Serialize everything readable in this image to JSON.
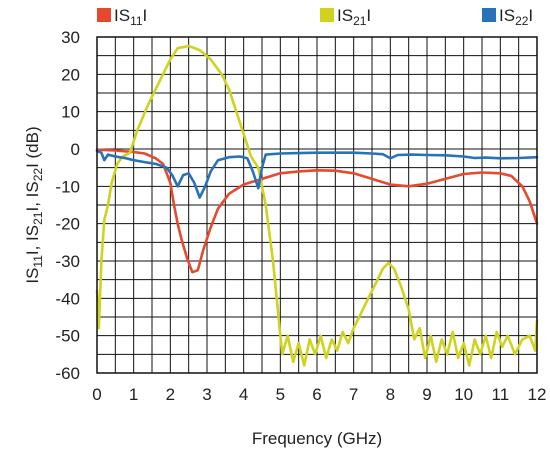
{
  "chart_data": {
    "type": "line",
    "xlabel": "Frequency (GHz)",
    "ylabel": "|S11|, |S21|, |S22| (dB)",
    "ylabel_parts": [
      {
        "t": "IS",
        "sub": false
      },
      {
        "t": "11",
        "sub": true
      },
      {
        "t": "I, IS",
        "sub": false
      },
      {
        "t": "21",
        "sub": true
      },
      {
        "t": "I, IS",
        "sub": false
      },
      {
        "t": "22",
        "sub": true
      },
      {
        "t": "I (dB)",
        "sub": false
      }
    ],
    "xlim": [
      0,
      12
    ],
    "ylim": [
      -60,
      30
    ],
    "x_ticks": [
      0,
      1,
      2,
      3,
      4,
      5,
      6,
      7,
      8,
      9,
      10,
      11,
      12
    ],
    "y_ticks": [
      30,
      20,
      10,
      0,
      -10,
      -20,
      -30,
      -40,
      -50,
      -60
    ],
    "x_minor_step": 0.5,
    "y_minor_step": 5,
    "grid": true,
    "legend_position": "top",
    "series": [
      {
        "name": "|S11|",
        "label_main": "IS",
        "label_sub": "11",
        "label_end": "I",
        "color": "#e64a2e",
        "points": [
          [
            0,
            -0.2
          ],
          [
            0.5,
            -0.4
          ],
          [
            1,
            -0.8
          ],
          [
            1.3,
            -1.2
          ],
          [
            1.6,
            -2.5
          ],
          [
            1.8,
            -4
          ],
          [
            2,
            -9
          ],
          [
            2.1,
            -15
          ],
          [
            2.2,
            -20
          ],
          [
            2.3,
            -24
          ],
          [
            2.45,
            -29
          ],
          [
            2.6,
            -33
          ],
          [
            2.75,
            -32.5
          ],
          [
            2.9,
            -27
          ],
          [
            3.1,
            -21
          ],
          [
            3.3,
            -16
          ],
          [
            3.6,
            -12
          ],
          [
            4,
            -9.5
          ],
          [
            4.5,
            -8
          ],
          [
            5,
            -6.5
          ],
          [
            5.5,
            -6
          ],
          [
            6,
            -5.7
          ],
          [
            6.5,
            -5.8
          ],
          [
            7,
            -6.5
          ],
          [
            7.5,
            -8
          ],
          [
            8,
            -9.5
          ],
          [
            8.5,
            -10
          ],
          [
            9,
            -9.3
          ],
          [
            9.5,
            -8
          ],
          [
            10,
            -6.7
          ],
          [
            10.5,
            -6.3
          ],
          [
            11,
            -6.5
          ],
          [
            11.3,
            -7.2
          ],
          [
            11.6,
            -10
          ],
          [
            11.8,
            -14
          ],
          [
            12,
            -20
          ]
        ]
      },
      {
        "name": "|S21|",
        "label_main": "IS",
        "label_sub": "21",
        "label_end": "I",
        "color": "#cfd31f",
        "points": [
          [
            0,
            -38
          ],
          [
            0.05,
            -48
          ],
          [
            0.12,
            -30
          ],
          [
            0.2,
            -19
          ],
          [
            0.3,
            -15
          ],
          [
            0.4,
            -9
          ],
          [
            0.55,
            -4
          ],
          [
            0.7,
            -2
          ],
          [
            0.9,
            -1
          ],
          [
            1.1,
            5
          ],
          [
            1.4,
            12
          ],
          [
            1.7,
            18
          ],
          [
            2,
            24
          ],
          [
            2.2,
            27
          ],
          [
            2.5,
            27.6
          ],
          [
            2.8,
            26.5
          ],
          [
            3.1,
            24
          ],
          [
            3.4,
            20
          ],
          [
            3.6,
            16
          ],
          [
            3.8,
            10
          ],
          [
            4,
            4
          ],
          [
            4.2,
            -2
          ],
          [
            4.4,
            -5
          ],
          [
            4.6,
            -15
          ],
          [
            4.8,
            -30
          ],
          [
            4.95,
            -45
          ],
          [
            5.05,
            -55
          ],
          [
            5.2,
            -50
          ],
          [
            5.35,
            -57
          ],
          [
            5.5,
            -52
          ],
          [
            5.65,
            -58
          ],
          [
            5.8,
            -51
          ],
          [
            5.95,
            -55
          ],
          [
            6.1,
            -50
          ],
          [
            6.25,
            -56
          ],
          [
            6.4,
            -51
          ],
          [
            6.55,
            -54
          ],
          [
            6.7,
            -49
          ],
          [
            6.85,
            -52
          ],
          [
            7,
            -48
          ],
          [
            7.2,
            -44
          ],
          [
            7.4,
            -40
          ],
          [
            7.6,
            -36
          ],
          [
            7.8,
            -32
          ],
          [
            7.95,
            -30.5
          ],
          [
            8.1,
            -32
          ],
          [
            8.3,
            -37
          ],
          [
            8.5,
            -43
          ],
          [
            8.65,
            -51
          ],
          [
            8.8,
            -48
          ],
          [
            8.95,
            -56
          ],
          [
            9.1,
            -50
          ],
          [
            9.25,
            -57
          ],
          [
            9.4,
            -51
          ],
          [
            9.55,
            -55
          ],
          [
            9.7,
            -49
          ],
          [
            9.85,
            -56
          ],
          [
            10,
            -52
          ],
          [
            10.15,
            -58
          ],
          [
            10.3,
            -51
          ],
          [
            10.45,
            -55
          ],
          [
            10.6,
            -50
          ],
          [
            10.75,
            -56
          ],
          [
            10.9,
            -49
          ],
          [
            11.05,
            -53
          ],
          [
            11.2,
            -50
          ],
          [
            11.4,
            -55
          ],
          [
            11.6,
            -51
          ],
          [
            11.8,
            -50
          ],
          [
            11.95,
            -54
          ],
          [
            12,
            -46
          ]
        ]
      },
      {
        "name": "|S22|",
        "label_main": "IS",
        "label_sub": "22",
        "label_end": "I",
        "color": "#2a72b8",
        "points": [
          [
            0,
            -0.5
          ],
          [
            0.12,
            -1
          ],
          [
            0.2,
            -3
          ],
          [
            0.3,
            -1.5
          ],
          [
            0.5,
            -2
          ],
          [
            0.8,
            -2.5
          ],
          [
            1,
            -3
          ],
          [
            1.3,
            -3.5
          ],
          [
            1.6,
            -4
          ],
          [
            1.9,
            -5
          ],
          [
            2.05,
            -7
          ],
          [
            2.2,
            -10
          ],
          [
            2.35,
            -7
          ],
          [
            2.5,
            -6.5
          ],
          [
            2.65,
            -9
          ],
          [
            2.8,
            -13
          ],
          [
            2.95,
            -10
          ],
          [
            3.1,
            -6
          ],
          [
            3.3,
            -3
          ],
          [
            3.6,
            -2.2
          ],
          [
            3.9,
            -2
          ],
          [
            4.1,
            -2.5
          ],
          [
            4.25,
            -6
          ],
          [
            4.4,
            -10.5
          ],
          [
            4.5,
            -5
          ],
          [
            4.6,
            -1.5
          ],
          [
            5,
            -1.2
          ],
          [
            5.5,
            -1.1
          ],
          [
            6,
            -1
          ],
          [
            6.5,
            -1
          ],
          [
            7,
            -1
          ],
          [
            7.5,
            -1.2
          ],
          [
            7.8,
            -1.4
          ],
          [
            8,
            -2.5
          ],
          [
            8.2,
            -1.6
          ],
          [
            8.6,
            -1.5
          ],
          [
            9,
            -1.6
          ],
          [
            9.5,
            -1.7
          ],
          [
            10,
            -2
          ],
          [
            10.3,
            -2.4
          ],
          [
            10.6,
            -2.3
          ],
          [
            11,
            -2.5
          ],
          [
            11.5,
            -2.4
          ],
          [
            12,
            -2.2
          ]
        ]
      }
    ]
  }
}
